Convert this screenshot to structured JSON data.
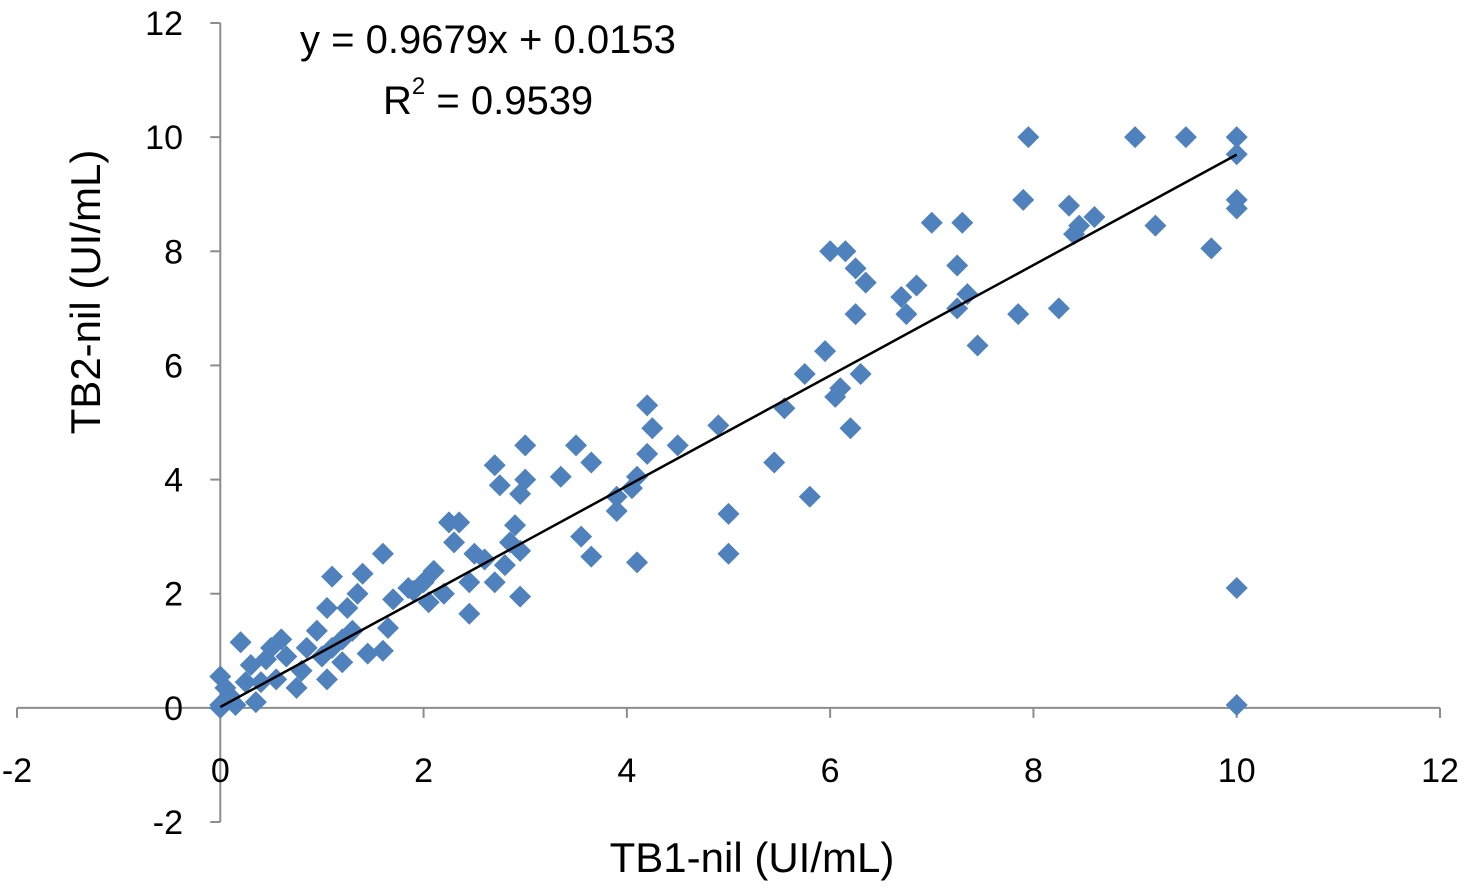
{
  "chart_data": {
    "type": "scatter",
    "xlabel": "TB1-nil (UI/mL)",
    "ylabel": "TB2-nil (UI/mL)",
    "xlim": [
      -2,
      12
    ],
    "ylim": [
      -2,
      12
    ],
    "x_ticks": [
      -2,
      0,
      2,
      4,
      6,
      8,
      10,
      12
    ],
    "y_ticks": [
      -2,
      0,
      2,
      4,
      6,
      8,
      10,
      12
    ],
    "x_tick_labels": [
      "-2",
      "0",
      "2",
      "4",
      "6",
      "8",
      "10",
      "12"
    ],
    "y_tick_labels": [
      "-2",
      "0",
      "2",
      "4",
      "6",
      "8",
      "10",
      "12"
    ],
    "marker": "diamond",
    "marker_color": "#4F81BD",
    "trendline": {
      "equation": "y = 0.9679x + 0.0153",
      "r2_label": "R",
      "r2_sup": "2",
      "r2_value": " = 0.9539",
      "slope": 0.9679,
      "intercept": 0.0153,
      "x_range": [
        0,
        10
      ],
      "color": "#000000"
    },
    "series": [
      {
        "points": [
          [
            7.95,
            10.0
          ],
          [
            9.0,
            10.0
          ],
          [
            9.5,
            10.0
          ],
          [
            10.0,
            10.0
          ],
          [
            10.0,
            9.7
          ],
          [
            7.9,
            8.9
          ],
          [
            10.0,
            8.9
          ],
          [
            10.0,
            8.75
          ],
          [
            9.75,
            8.05
          ],
          [
            9.2,
            8.45
          ],
          [
            8.35,
            8.8
          ],
          [
            8.6,
            8.6
          ],
          [
            8.45,
            8.45
          ],
          [
            8.4,
            8.3
          ],
          [
            7.0,
            8.5
          ],
          [
            7.3,
            8.5
          ],
          [
            7.25,
            7.75
          ],
          [
            7.35,
            7.25
          ],
          [
            7.25,
            7.0
          ],
          [
            7.45,
            6.35
          ],
          [
            7.85,
            6.9
          ],
          [
            8.25,
            7.0
          ],
          [
            6.0,
            8.0
          ],
          [
            6.15,
            8.0
          ],
          [
            6.25,
            7.7
          ],
          [
            6.35,
            7.45
          ],
          [
            6.7,
            7.2
          ],
          [
            6.85,
            7.4
          ],
          [
            6.75,
            6.9
          ],
          [
            6.25,
            6.9
          ],
          [
            5.95,
            6.25
          ],
          [
            5.75,
            5.85
          ],
          [
            6.3,
            5.85
          ],
          [
            6.1,
            5.6
          ],
          [
            6.05,
            5.45
          ],
          [
            5.55,
            5.25
          ],
          [
            6.2,
            4.9
          ],
          [
            5.45,
            4.3
          ],
          [
            5.8,
            3.7
          ],
          [
            4.9,
            4.95
          ],
          [
            5.0,
            3.4
          ],
          [
            5.0,
            2.7
          ],
          [
            4.5,
            4.6
          ],
          [
            4.25,
            4.9
          ],
          [
            4.2,
            5.3
          ],
          [
            4.2,
            4.45
          ],
          [
            4.1,
            4.05
          ],
          [
            4.05,
            3.85
          ],
          [
            3.9,
            3.7
          ],
          [
            3.9,
            3.45
          ],
          [
            4.1,
            2.55
          ],
          [
            3.5,
            4.6
          ],
          [
            3.65,
            4.3
          ],
          [
            3.35,
            4.05
          ],
          [
            3.55,
            3.0
          ],
          [
            3.65,
            2.65
          ],
          [
            3.0,
            4.6
          ],
          [
            3.0,
            4.0
          ],
          [
            2.7,
            4.25
          ],
          [
            2.75,
            3.9
          ],
          [
            2.95,
            3.75
          ],
          [
            2.9,
            3.2
          ],
          [
            2.85,
            2.9
          ],
          [
            2.95,
            2.75
          ],
          [
            2.8,
            2.5
          ],
          [
            2.7,
            2.2
          ],
          [
            2.95,
            1.95
          ],
          [
            2.6,
            2.6
          ],
          [
            2.5,
            2.7
          ],
          [
            2.45,
            2.2
          ],
          [
            2.45,
            1.65
          ],
          [
            2.25,
            3.25
          ],
          [
            2.35,
            3.25
          ],
          [
            2.3,
            2.9
          ],
          [
            2.2,
            2.0
          ],
          [
            2.1,
            2.4
          ],
          [
            2.0,
            2.2
          ],
          [
            2.05,
            1.85
          ],
          [
            1.9,
            2.05
          ],
          [
            1.85,
            2.1
          ],
          [
            1.6,
            2.7
          ],
          [
            1.4,
            2.35
          ],
          [
            1.1,
            2.3
          ],
          [
            1.35,
            2.0
          ],
          [
            1.25,
            1.75
          ],
          [
            1.05,
            1.75
          ],
          [
            1.7,
            1.9
          ],
          [
            1.65,
            1.4
          ],
          [
            1.6,
            1.0
          ],
          [
            1.45,
            0.95
          ],
          [
            1.3,
            1.35
          ],
          [
            1.2,
            1.2
          ],
          [
            1.1,
            1.05
          ],
          [
            1.2,
            0.8
          ],
          [
            1.0,
            0.9
          ],
          [
            1.05,
            0.5
          ],
          [
            0.95,
            1.35
          ],
          [
            0.85,
            1.05
          ],
          [
            0.8,
            0.65
          ],
          [
            0.75,
            0.35
          ],
          [
            0.6,
            1.2
          ],
          [
            0.65,
            0.9
          ],
          [
            0.5,
            1.05
          ],
          [
            0.45,
            0.85
          ],
          [
            0.55,
            0.5
          ],
          [
            0.4,
            0.45
          ],
          [
            0.3,
            0.75
          ],
          [
            0.2,
            1.15
          ],
          [
            0.25,
            0.45
          ],
          [
            0.35,
            0.1
          ],
          [
            0.0,
            0.55
          ],
          [
            0.05,
            0.35
          ],
          [
            0.1,
            0.2
          ],
          [
            0.15,
            0.05
          ],
          [
            0.0,
            0.05
          ],
          [
            0.0,
            0.0
          ],
          [
            10.0,
            2.1
          ],
          [
            10.0,
            0.05
          ]
        ]
      }
    ]
  }
}
